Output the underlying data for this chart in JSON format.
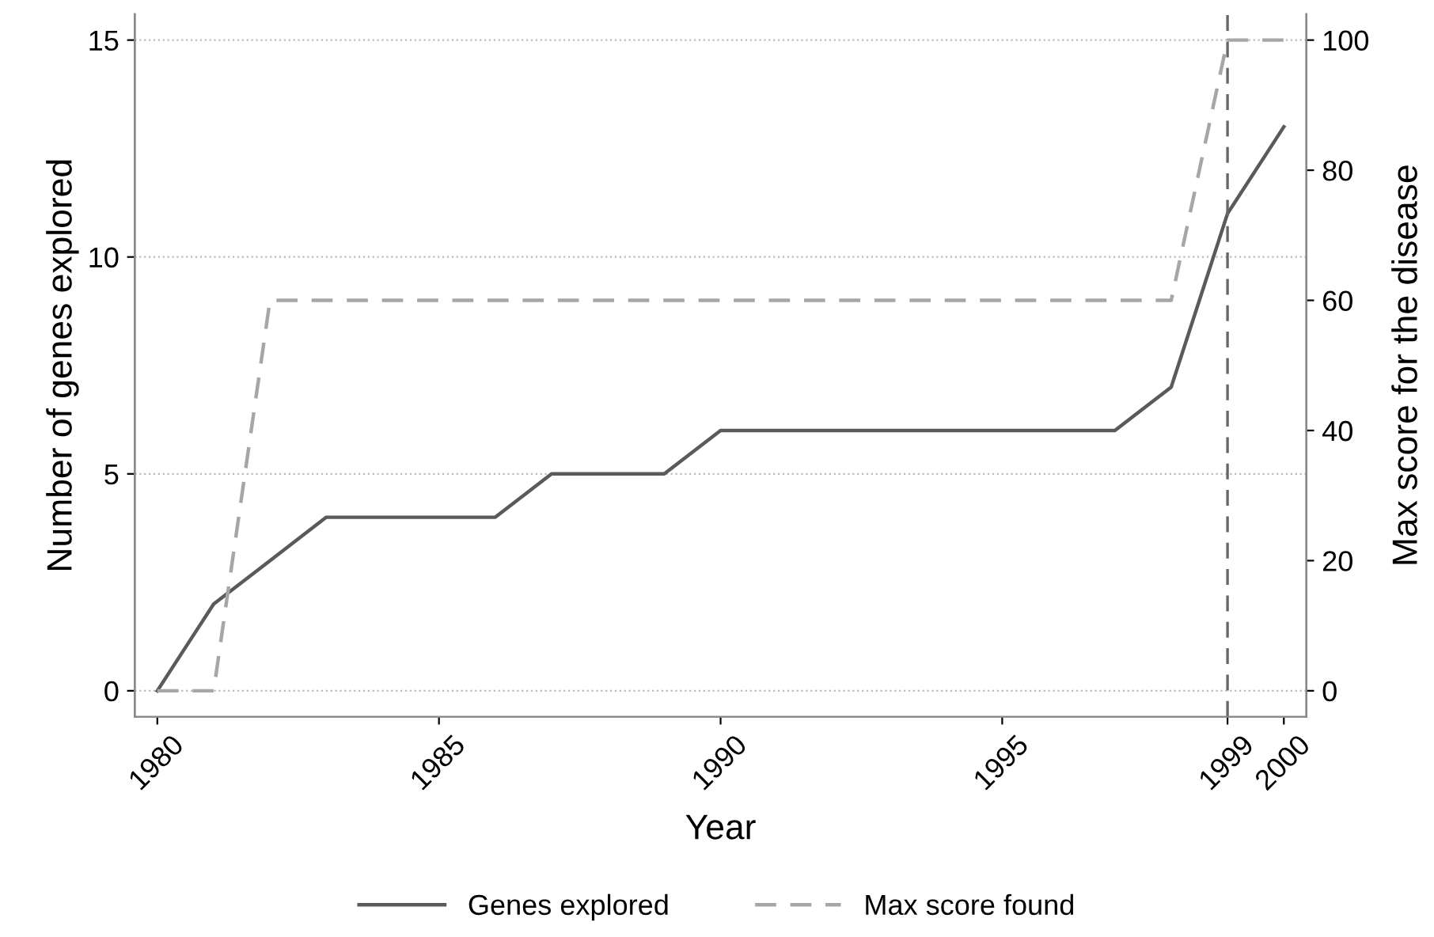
{
  "chart_data": {
    "type": "line",
    "xlabel": "Year",
    "ylabel": "Number of genes explored",
    "y2label": "Max score for the disease",
    "x": [
      1980,
      1981,
      1982,
      1983,
      1984,
      1985,
      1986,
      1987,
      1988,
      1989,
      1990,
      1991,
      1992,
      1993,
      1994,
      1995,
      1996,
      1997,
      1998,
      1999,
      2000
    ],
    "series": [
      {
        "name": "Genes explored",
        "color": "#5a5a5a",
        "line_style": "solid",
        "values": [
          0,
          2,
          3,
          4,
          4,
          4,
          4,
          5,
          5,
          5,
          6,
          6,
          6,
          6,
          6,
          6,
          6,
          6,
          7,
          11,
          13
        ]
      },
      {
        "name": "Max score found",
        "color": "#a6a6a6",
        "line_style": "dashed",
        "axis": "y2",
        "values": [
          0,
          0,
          60,
          60,
          60,
          60,
          60,
          60,
          60,
          60,
          60,
          60,
          60,
          60,
          60,
          60,
          60,
          60,
          60,
          100,
          100
        ]
      }
    ],
    "xlim": [
      1979.6,
      2000.4
    ],
    "xticks": [
      1980,
      1985,
      1990,
      1995,
      1999,
      2000
    ],
    "ylim": [
      -0.6,
      15.6
    ],
    "yticks": [
      0,
      5,
      10,
      15
    ],
    "y2lim": [
      -4,
      104
    ],
    "y2ticks": [
      0,
      20,
      40,
      60,
      80,
      100
    ],
    "ref_lines": [
      {
        "axis": "x",
        "value": 1999,
        "color": "#666666",
        "line_style": "dashed"
      }
    ],
    "grid": "y",
    "legend": "bottom",
    "marker": "none"
  }
}
